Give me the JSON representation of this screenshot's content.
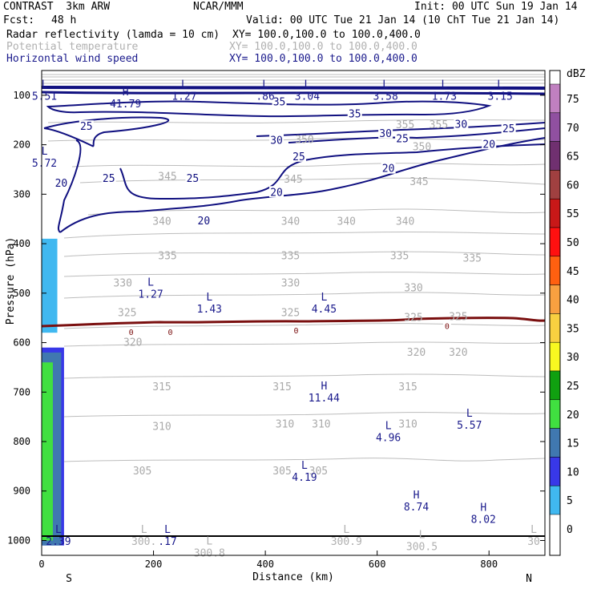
{
  "header": {
    "model": "CONTRAST  3km ARW",
    "center": "NCAR/MMM",
    "init": "Init: 00 UTC Sun 19 Jan 14",
    "fcst_label": "Fcst:",
    "fcst_value": "48 h",
    "valid": "Valid: 00 UTC Tue 21 Jan 14 (10 ChT Tue 21 Jan 14)"
  },
  "fields": [
    {
      "name": "Radar reflectivity (lamda = 10 cm)",
      "xy": "XY= 100.0,100.0 to 100.0,400.0",
      "color": "#000000"
    },
    {
      "name": "Potential temperature",
      "xy": "XY= 100.0,100.0 to 100.0,400.0",
      "color": "#b0b0b0"
    },
    {
      "name": "Horizontal wind speed",
      "xy": "XY= 100.0,100.0 to 100.0,400.0",
      "color": "#1a1a8c"
    }
  ],
  "chart_data": {
    "type": "cross-section",
    "xlabel": "Distance (km)",
    "ylabel": "Pressure (hPa)",
    "xlim": [
      0,
      900
    ],
    "ylim": [
      1030,
      50
    ],
    "x_ticks": [
      0,
      200,
      400,
      600,
      800
    ],
    "y_ticks": [
      100,
      200,
      300,
      400,
      500,
      600,
      700,
      800,
      900,
      1000
    ],
    "endpoints": {
      "left": "S",
      "right": "N"
    },
    "colorbar": {
      "unit": "dBZ",
      "levels": [
        75,
        70,
        65,
        60,
        55,
        50,
        45,
        40,
        35,
        30,
        25,
        20,
        15,
        10,
        5,
        0
      ],
      "colors": [
        "#c080c0",
        "#9050a0",
        "#703070",
        "#a04040",
        "#c81818",
        "#ff1010",
        "#ff6010",
        "#f8a040",
        "#f8d040",
        "#f8f820",
        "#10a010",
        "#40e040",
        "#4078b0",
        "#3838e8",
        "#40b8f0",
        "#80f8f8"
      ]
    },
    "reflectivity_columns": [
      {
        "x_range": [
          0,
          28
        ],
        "p_range": [
          390,
          580
        ],
        "dbz": 5
      },
      {
        "x_range": [
          0,
          40
        ],
        "p_range": [
          610,
          1010
        ],
        "dbz": 10
      },
      {
        "x_range": [
          0,
          35
        ],
        "p_range": [
          620,
          1010
        ],
        "dbz": 15
      },
      {
        "x_range": [
          0,
          20
        ],
        "p_range": [
          640,
          1000
        ],
        "dbz": 20
      }
    ],
    "theta_labels": [
      {
        "v": "355",
        "x": 650,
        "p": 160
      },
      {
        "v": "355",
        "x": 710,
        "p": 160
      },
      {
        "v": "350",
        "x": 470,
        "p": 190
      },
      {
        "v": "350",
        "x": 680,
        "p": 205
      },
      {
        "v": "345",
        "x": 225,
        "p": 265
      },
      {
        "v": "345",
        "x": 450,
        "p": 270
      },
      {
        "v": "345",
        "x": 675,
        "p": 275
      },
      {
        "v": "340",
        "x": 215,
        "p": 355
      },
      {
        "v": "340",
        "x": 445,
        "p": 355
      },
      {
        "v": "340",
        "x": 545,
        "p": 355
      },
      {
        "v": "340",
        "x": 650,
        "p": 355
      },
      {
        "v": "335",
        "x": 225,
        "p": 425
      },
      {
        "v": "335",
        "x": 445,
        "p": 425
      },
      {
        "v": "335",
        "x": 640,
        "p": 425
      },
      {
        "v": "335",
        "x": 770,
        "p": 430
      },
      {
        "v": "330",
        "x": 145,
        "p": 480
      },
      {
        "v": "330",
        "x": 445,
        "p": 480
      },
      {
        "v": "330",
        "x": 665,
        "p": 490
      },
      {
        "v": "325",
        "x": 153,
        "p": 540
      },
      {
        "v": "325",
        "x": 445,
        "p": 540
      },
      {
        "v": "325",
        "x": 665,
        "p": 550
      },
      {
        "v": "325",
        "x": 745,
        "p": 548
      },
      {
        "v": "320",
        "x": 163,
        "p": 600
      },
      {
        "v": "320",
        "x": 670,
        "p": 620
      },
      {
        "v": "320",
        "x": 745,
        "p": 620
      },
      {
        "v": "315",
        "x": 215,
        "p": 690
      },
      {
        "v": "315",
        "x": 430,
        "p": 690
      },
      {
        "v": "315",
        "x": 655,
        "p": 690
      },
      {
        "v": "310",
        "x": 215,
        "p": 770
      },
      {
        "v": "310",
        "x": 435,
        "p": 765
      },
      {
        "v": "310",
        "x": 500,
        "p": 765
      },
      {
        "v": "310",
        "x": 655,
        "p": 765
      },
      {
        "v": "305",
        "x": 180,
        "p": 860
      },
      {
        "v": "305",
        "x": 430,
        "p": 860
      },
      {
        "v": "305",
        "x": 495,
        "p": 860
      }
    ],
    "wind_labels": [
      {
        "v": "35",
        "x": 425,
        "p": 112
      },
      {
        "v": "35",
        "x": 560,
        "p": 137
      },
      {
        "v": "30",
        "x": 420,
        "p": 190
      },
      {
        "v": "30",
        "x": 615,
        "p": 176
      },
      {
        "v": "30",
        "x": 750,
        "p": 158
      },
      {
        "v": "25",
        "x": 80,
        "p": 162
      },
      {
        "v": "25",
        "x": 120,
        "p": 267
      },
      {
        "v": "25",
        "x": 270,
        "p": 267
      },
      {
        "v": "25",
        "x": 460,
        "p": 223
      },
      {
        "v": "25",
        "x": 645,
        "p": 187
      },
      {
        "v": "25",
        "x": 835,
        "p": 167
      },
      {
        "v": "20",
        "x": 35,
        "p": 277
      },
      {
        "v": "20",
        "x": 290,
        "p": 353
      },
      {
        "v": "20",
        "x": 420,
        "p": 295
      },
      {
        "v": "20",
        "x": 620,
        "p": 247
      },
      {
        "v": "20",
        "x": 800,
        "p": 198
      }
    ],
    "zero_labels": [
      {
        "x": 160,
        "p": 578
      },
      {
        "x": 230,
        "p": 578
      },
      {
        "x": 455,
        "p": 575
      },
      {
        "x": 725,
        "p": 566
      }
    ],
    "extrema_blue": [
      {
        "t": "L",
        "v": "5.51",
        "x": 5,
        "p": 85
      },
      {
        "t": "L",
        "v": "1.27",
        "x": 255,
        "p": 85
      },
      {
        "t": "L",
        "v": ".86",
        "x": 400,
        "p": 85
      },
      {
        "t": "L",
        "v": "3.04",
        "x": 475,
        "p": 85
      },
      {
        "t": "L",
        "v": "3.58",
        "x": 615,
        "p": 85
      },
      {
        "t": "L",
        "v": "1.73",
        "x": 720,
        "p": 85
      },
      {
        "t": "L",
        "v": "3.15",
        "x": 820,
        "p": 85
      },
      {
        "t": "H",
        "v": "41.79",
        "x": 150,
        "p": 100
      },
      {
        "t": "L",
        "v": "5.72",
        "x": 5,
        "p": 220
      },
      {
        "t": "L",
        "v": "1.27",
        "x": 195,
        "p": 485
      },
      {
        "t": "L",
        "v": "1.43",
        "x": 300,
        "p": 515
      },
      {
        "t": "L",
        "v": "4.45",
        "x": 505,
        "p": 515
      },
      {
        "t": "H",
        "v": "11.44",
        "x": 505,
        "p": 695
      },
      {
        "t": "L",
        "v": "5.57",
        "x": 765,
        "p": 750
      },
      {
        "t": "L",
        "v": "4.96",
        "x": 620,
        "p": 775
      },
      {
        "t": "L",
        "v": "4.19",
        "x": 470,
        "p": 855
      },
      {
        "t": "H",
        "v": "8.74",
        "x": 670,
        "p": 915
      },
      {
        "t": "H",
        "v": "8.02",
        "x": 790,
        "p": 940
      },
      {
        "t": "L",
        "v": "2.39",
        "x": 30,
        "p": 985
      },
      {
        "t": "L",
        "v": ".17",
        "x": 225,
        "p": 985
      }
    ],
    "extrema_grey": [
      {
        "t": "L",
        "v": "300.",
        "x": 183,
        "p": 985
      },
      {
        "t": "L",
        "v": "300.8",
        "x": 300,
        "p": 1008
      },
      {
        "t": "L",
        "v": "300.9",
        "x": 545,
        "p": 985
      },
      {
        "t": "L",
        "v": "300.5",
        "x": 680,
        "p": 995
      },
      {
        "t": "L",
        "v": "30",
        "x": 880,
        "p": 985
      }
    ]
  }
}
